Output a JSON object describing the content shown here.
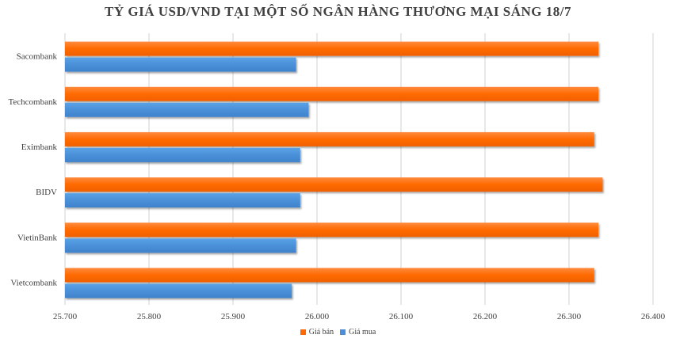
{
  "chart_data": {
    "type": "bar",
    "orientation": "horizontal",
    "title": "TỶ GIÁ USD/VND TẠI MỘT SỐ NGÂN HÀNG THƯƠNG MẠI SÁNG 18/7",
    "categories": [
      "Sacombank",
      "Techcombank",
      "Eximbank",
      "BIDV",
      "VietinBank",
      "Vietcombank"
    ],
    "series": [
      {
        "name": "Giá bán",
        "color": "#FF6A00",
        "values": [
          26335,
          26335,
          26330,
          26340,
          26335,
          26330
        ]
      },
      {
        "name": "Giá mua",
        "color": "#4A90D9",
        "values": [
          25975,
          25990,
          25980,
          25980,
          25975,
          25970
        ]
      }
    ],
    "xlim": [
      25700,
      26400
    ],
    "xticks": [
      25700,
      25800,
      25900,
      26000,
      26100,
      26200,
      26300,
      26400
    ],
    "xtick_labels": [
      "25.700",
      "25.800",
      "25.900",
      "26.000",
      "26.100",
      "26.200",
      "26.300",
      "26.400"
    ],
    "grid": true,
    "legend": "bottom"
  }
}
